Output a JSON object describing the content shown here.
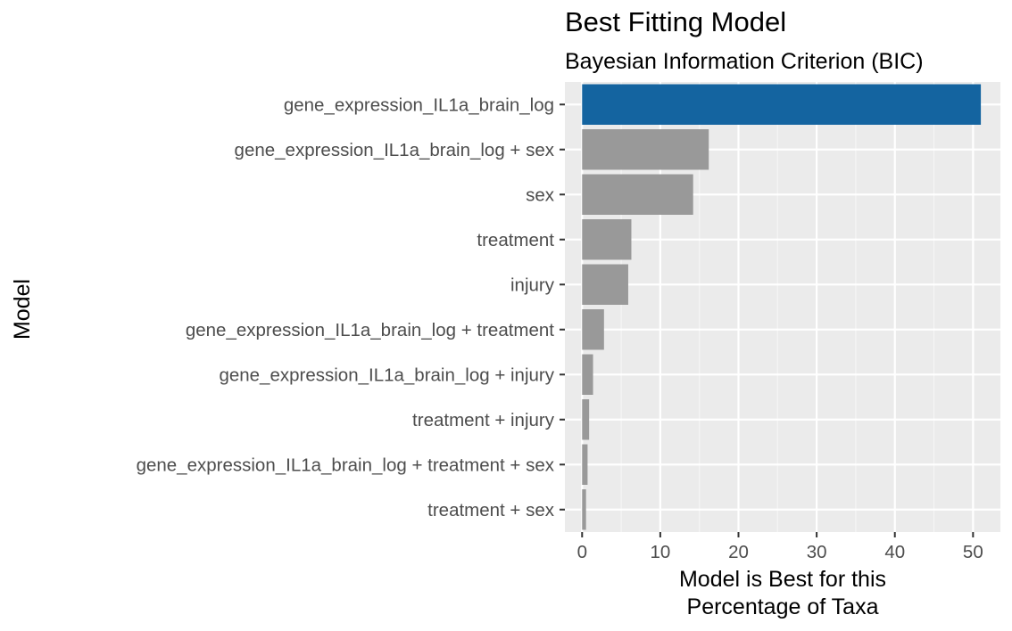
{
  "chart_data": {
    "type": "bar",
    "orientation": "horizontal",
    "title": "Best Fitting Model",
    "subtitle": "Bayesian Information Criterion (BIC)",
    "xlabel": [
      "Model is Best for this",
      "Percentage of Taxa"
    ],
    "ylabel": "Model",
    "xlim": [
      -2.2,
      53.5
    ],
    "xticks": [
      0,
      10,
      20,
      30,
      40,
      50
    ],
    "grid": true,
    "categories": [
      "gene_expression_IL1a_brain_log",
      "gene_expression_IL1a_brain_log + sex",
      "sex",
      "treatment",
      "injury",
      "gene_expression_IL1a_brain_log + treatment",
      "gene_expression_IL1a_brain_log + injury",
      "treatment + injury",
      "gene_expression_IL1a_brain_log + treatment + sex",
      "treatment + sex"
    ],
    "values": [
      51.0,
      16.2,
      14.2,
      6.3,
      5.9,
      2.8,
      1.4,
      0.9,
      0.7,
      0.5
    ],
    "highlight_index": 0,
    "colors": {
      "highlight": "#1464a0",
      "default": "#999999",
      "panel": "#ebebeb",
      "grid_major": "#ffffff",
      "grid_minor": "#f5f5f5",
      "tick": "#333333"
    }
  }
}
